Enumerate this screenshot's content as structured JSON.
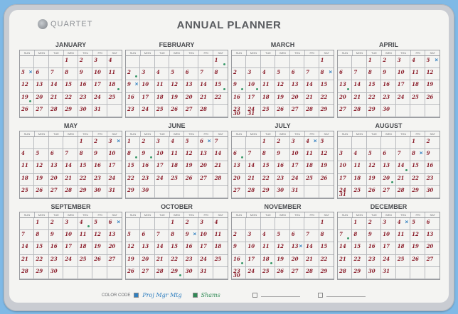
{
  "board": {
    "brand": "QUARTET",
    "title": "ANNUAL PLANNER",
    "weekdays": [
      "SUN",
      "MON",
      "TUE",
      "WED",
      "THU",
      "FRI",
      "SAT"
    ],
    "color_code_label": "COLOR CODE",
    "color_code_entries": [
      {
        "text": "Proj Mgr Mtg",
        "color": "#2f7fc0"
      },
      {
        "text": "Shams",
        "color": "#2f8a55"
      }
    ]
  },
  "months": [
    {
      "name": "JANUARY",
      "start": 3,
      "days": 31,
      "x": [
        5
      ],
      "dots": [
        18,
        19
      ]
    },
    {
      "name": "FEBRUARY",
      "start": 6,
      "days": 28,
      "x": [
        9
      ],
      "dots": [
        1,
        2,
        15
      ]
    },
    {
      "name": "MARCH",
      "start": 6,
      "days": 31,
      "x": [
        8
      ],
      "dots": [
        9,
        10
      ]
    },
    {
      "name": "APRIL",
      "start": 2,
      "days": 30,
      "x": [
        5
      ],
      "dots": [
        13
      ]
    },
    {
      "name": "MAY",
      "start": 4,
      "days": 31,
      "x": [
        3
      ],
      "dots": []
    },
    {
      "name": "JUNE",
      "start": 0,
      "days": 30,
      "x": [
        6
      ],
      "dots": [
        8,
        9
      ]
    },
    {
      "name": "JULY",
      "start": 2,
      "days": 31,
      "x": [
        4
      ],
      "dots": [
        6
      ]
    },
    {
      "name": "AUGUST",
      "start": 5,
      "days": 31,
      "x": [
        8
      ],
      "dots": [
        14,
        20
      ]
    },
    {
      "name": "SEPTEMBER",
      "start": 1,
      "days": 30,
      "x": [
        6
      ],
      "dots": [
        4
      ]
    },
    {
      "name": "OCTOBER",
      "start": 3,
      "days": 31,
      "x": [
        9
      ],
      "dots": [
        29
      ]
    },
    {
      "name": "NOVEMBER",
      "start": 6,
      "days": 30,
      "x": [
        13
      ],
      "dots": [
        16,
        18
      ]
    },
    {
      "name": "DECEMBER",
      "start": 1,
      "days": 31,
      "x": [
        4
      ],
      "dots": [
        7
      ]
    }
  ]
}
